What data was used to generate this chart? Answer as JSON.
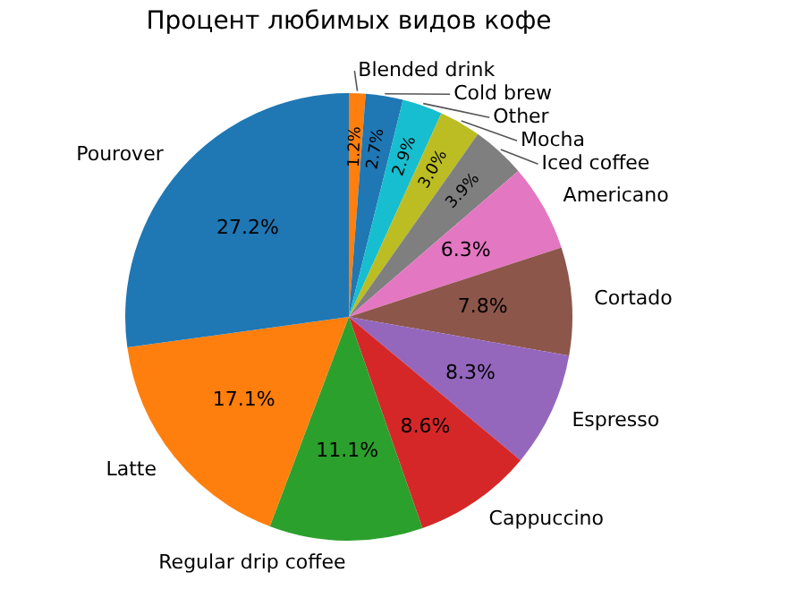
{
  "chart_data": {
    "type": "pie",
    "title": "Процент любимых видов кофе",
    "categories": [
      "Blended drink",
      "Cold brew",
      "Other",
      "Mocha",
      "Iced coffee",
      "Americano",
      "Cortado",
      "Espresso",
      "Cappuccino",
      "Regular drip coffee",
      "Latte",
      "Pourover"
    ],
    "values": [
      1.2,
      2.7,
      2.9,
      3.0,
      3.9,
      6.3,
      7.8,
      8.3,
      8.6,
      11.1,
      17.1,
      27.2
    ],
    "colors": [
      "#ff7f0e",
      "#1f77b4",
      "#17becf",
      "#bcbd22",
      "#7f7f7f",
      "#e377c2",
      "#8c564b",
      "#9467bd",
      "#d62728",
      "#2ca02c",
      "#ff7f0e",
      "#1f77b4"
    ],
    "value_labels": [
      "1.2%",
      "2.7%",
      "2.9%",
      "3.0%",
      "3.9%",
      "6.3%",
      "7.8%",
      "8.3%",
      "8.6%",
      "11.1%",
      "17.1%",
      "27.2%"
    ],
    "legend": false
  }
}
